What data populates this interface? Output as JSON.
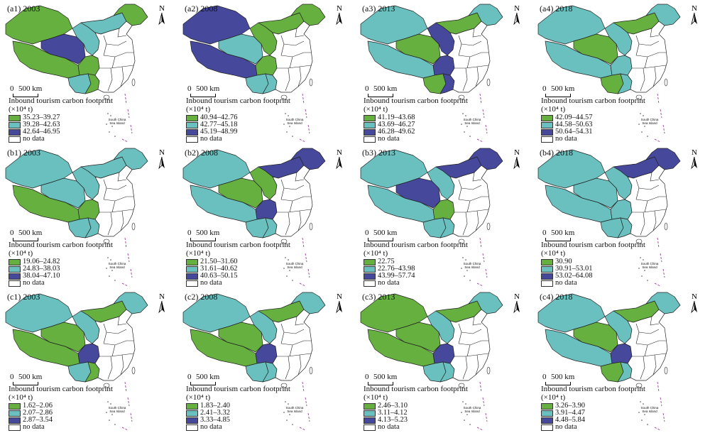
{
  "colors": {
    "green": "#66b03f",
    "teal": "#69c0bf",
    "navy": "#46489c",
    "nodata": "#ffffff"
  },
  "common": {
    "scale_zero": "0",
    "scale_km": "500 km",
    "north": "N",
    "legend_title": "Inbound tourism carbon footprint (×10⁴ t)",
    "no_data": "no data",
    "inset_label": "South China Sea Island"
  },
  "panels": [
    {
      "title": "(a1) 2003",
      "legend": [
        "35.23–39.27",
        "39.28–42.63",
        "42.64–46.95"
      ],
      "regions": {
        "nw": "green",
        "tibet": "green",
        "qinghai": "navy",
        "central": "teal",
        "inner_mongolia": "teal",
        "northeast": "green",
        "sichuan": "green",
        "yunnan": "teal",
        "guangxi": "green"
      }
    },
    {
      "title": "(a2) 2008",
      "legend": [
        "40.94–42.76",
        "42.77–45.18",
        "45.19–48.99"
      ],
      "regions": {
        "nw": "navy",
        "tibet": "navy",
        "qinghai": "teal",
        "central": "green",
        "inner_mongolia": "green",
        "northeast": "green",
        "sichuan": "green",
        "yunnan": "teal",
        "guangxi": "teal"
      }
    },
    {
      "title": "(a3) 2013",
      "legend": [
        "41.19–43.68",
        "43.69–46.27",
        "46.28–49.62"
      ],
      "regions": {
        "nw": "teal",
        "tibet": "teal",
        "qinghai": "green",
        "central": "navy",
        "inner_mongolia": "green",
        "northeast": "teal",
        "sichuan": "navy",
        "yunnan": "green",
        "guangxi": "navy"
      }
    },
    {
      "title": "(a4) 2018",
      "legend": [
        "42.09–44.57",
        "44.58–50.63",
        "50.64–54.31"
      ],
      "regions": {
        "nw": "teal",
        "tibet": "teal",
        "qinghai": "green",
        "central": "teal",
        "inner_mongolia": "green",
        "northeast": "teal",
        "sichuan": "teal",
        "yunnan": "green",
        "guangxi": "teal"
      }
    },
    {
      "title": "(b1) 2003",
      "legend": [
        "19.06–24.82",
        "24.83–38.03",
        "38.04–47.10"
      ],
      "regions": {
        "nw": "teal",
        "tibet": "green",
        "qinghai": "teal",
        "central": "teal",
        "inner_mongolia": "teal",
        "northeast": "teal",
        "sichuan": "green",
        "yunnan": "teal",
        "guangxi": "teal"
      }
    },
    {
      "title": "(b2) 2008",
      "legend": [
        "21.50–31.60",
        "31.61–40.62",
        "40.63–50.15"
      ],
      "regions": {
        "nw": "teal",
        "tibet": "teal",
        "qinghai": "green",
        "central": "green",
        "inner_mongolia": "navy",
        "northeast": "navy",
        "sichuan": "navy",
        "yunnan": "teal",
        "guangxi": "teal"
      }
    },
    {
      "title": "(b3) 2013",
      "legend": [
        "22.75",
        "22.76–43.98",
        "43.99–57.74"
      ],
      "regions": {
        "nw": "teal",
        "tibet": "teal",
        "qinghai": "navy",
        "central": "teal",
        "inner_mongolia": "navy",
        "northeast": "navy",
        "sichuan": "green",
        "yunnan": "teal",
        "guangxi": "teal"
      }
    },
    {
      "title": "(b4) 2018",
      "legend": [
        "30.90",
        "30.91–53.01",
        "53.02–64.08"
      ],
      "regions": {
        "nw": "teal",
        "tibet": "teal",
        "qinghai": "teal",
        "central": "teal",
        "inner_mongolia": "navy",
        "northeast": "navy",
        "sichuan": "teal",
        "yunnan": "teal",
        "guangxi": "teal"
      }
    },
    {
      "title": "(c1) 2003",
      "legend": [
        "1.62–2.06",
        "2.07–2.86",
        "2.87–3.54"
      ],
      "regions": {
        "nw": "teal",
        "tibet": "green",
        "qinghai": "green",
        "central": "teal",
        "inner_mongolia": "green",
        "northeast": "teal",
        "sichuan": "navy",
        "yunnan": "teal",
        "guangxi": "green"
      }
    },
    {
      "title": "(c2) 2008",
      "legend": [
        "1.83–2.40",
        "2.41–3.32",
        "3.33–4.85"
      ],
      "regions": {
        "nw": "teal",
        "tibet": "green",
        "qinghai": "green",
        "central": "teal",
        "inner_mongolia": "green",
        "northeast": "teal",
        "sichuan": "navy",
        "yunnan": "teal",
        "guangxi": "teal"
      }
    },
    {
      "title": "(c3) 2013",
      "legend": [
        "2.46–3.10",
        "3.11–4.12",
        "4.13–5.23"
      ],
      "regions": {
        "nw": "green",
        "tibet": "green",
        "qinghai": "green",
        "central": "teal",
        "inner_mongolia": "green",
        "northeast": "teal",
        "sichuan": "navy",
        "yunnan": "teal",
        "guangxi": "teal"
      }
    },
    {
      "title": "(c4) 2018",
      "legend": [
        "3.26–3.90",
        "3.91–4.47",
        "4.48–5.84"
      ],
      "regions": {
        "nw": "teal",
        "tibet": "teal",
        "qinghai": "green",
        "central": "teal",
        "inner_mongolia": "green",
        "northeast": "teal",
        "sichuan": "navy",
        "yunnan": "green",
        "guangxi": "teal"
      }
    }
  ]
}
